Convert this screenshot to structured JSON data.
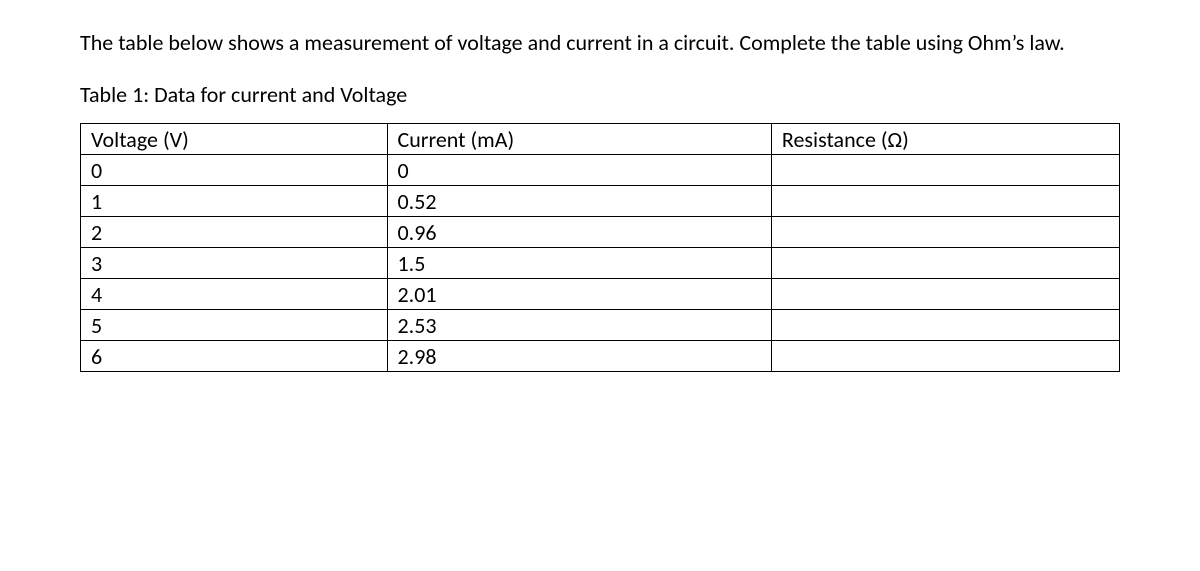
{
  "intro_text": "The table below shows a measurement of voltage and current in a circuit. Complete the table using Ohm’s law.",
  "caption": "Table 1: Data for current and Voltage",
  "table": {
    "columns": [
      "Voltage (V)",
      "Current (mA)",
      "Resistance (Ω)"
    ],
    "rows": [
      [
        "0",
        "0",
        ""
      ],
      [
        "1",
        "0.52",
        ""
      ],
      [
        "2",
        "0.96",
        ""
      ],
      [
        "3",
        "1.5",
        ""
      ],
      [
        "4",
        "2.01",
        ""
      ],
      [
        "5",
        "2.53",
        ""
      ],
      [
        "6",
        "2.98",
        ""
      ]
    ],
    "border_color": "#000000",
    "background_color": "#ffffff",
    "font_size_pt": 11,
    "col_widths_pct": [
      29.5,
      37,
      33.5
    ]
  }
}
